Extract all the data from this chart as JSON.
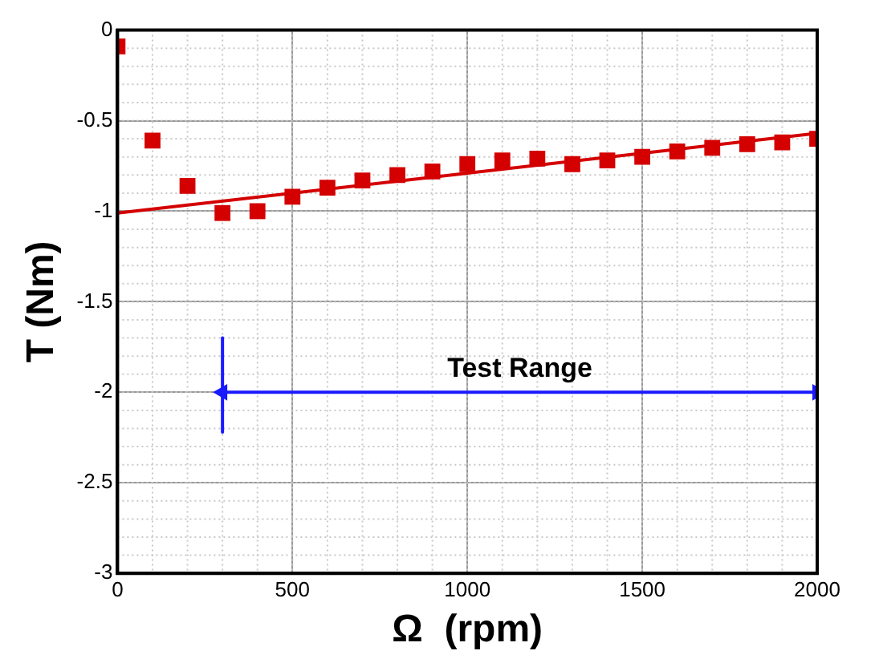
{
  "chart_data": {
    "type": "scatter",
    "xlabel": "Ω  (rpm)",
    "ylabel": "T (Nm)",
    "xlim": [
      0,
      2000
    ],
    "ylim": [
      -3,
      0
    ],
    "xticks": [
      0,
      500,
      1000,
      1500,
      2000
    ],
    "yticks": [
      -3,
      -2.5,
      -2,
      -1.5,
      -1,
      -0.5,
      0
    ],
    "grid": true,
    "series": [
      {
        "type": "scatter",
        "marker": "square",
        "color": "#d40000",
        "x": [
          0,
          100,
          200,
          300,
          400,
          500,
          600,
          700,
          800,
          900,
          1000,
          1100,
          1200,
          1300,
          1400,
          1500,
          1600,
          1700,
          1800,
          1900,
          2000
        ],
        "values": [
          -0.09,
          -0.61,
          -0.86,
          -1.01,
          -1.0,
          -0.92,
          -0.87,
          -0.83,
          -0.8,
          -0.78,
          -0.74,
          -0.72,
          -0.71,
          -0.74,
          -0.72,
          -0.7,
          -0.67,
          -0.65,
          -0.63,
          -0.62,
          -0.6
        ]
      },
      {
        "type": "line",
        "marker": "none",
        "color": "#d40000",
        "x": [
          0,
          2000
        ],
        "values": [
          -1.01,
          -0.57
        ]
      },
      {
        "type": "line",
        "marker": "triangle",
        "color": "#1a1aff",
        "x": [
          300,
          2000
        ],
        "values": [
          -2,
          -2
        ]
      },
      {
        "type": "line",
        "marker": "none",
        "color": "#1a1aff",
        "x": [
          300,
          300
        ],
        "values": [
          -1.7,
          -2.22
        ]
      }
    ],
    "annotations": [
      {
        "text": "Test Range",
        "x": 1150,
        "y": -2
      }
    ]
  }
}
